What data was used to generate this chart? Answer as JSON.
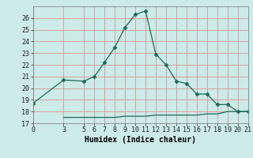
{
  "xlabel": "Humidex (Indice chaleur)",
  "bg_color": "#cceae7",
  "grid_color": "#d4a0a0",
  "line_color": "#1a6b5a",
  "line1_x": [
    0,
    3,
    5,
    6,
    7,
    8,
    9,
    10,
    11,
    12,
    13,
    14,
    15,
    16,
    17,
    18,
    19,
    20,
    21
  ],
  "line1_y": [
    18.7,
    20.7,
    20.6,
    21.0,
    22.2,
    23.5,
    25.2,
    26.3,
    26.6,
    22.9,
    22.0,
    20.6,
    20.4,
    19.5,
    19.5,
    18.6,
    18.6,
    18.0,
    18.0
  ],
  "line2_x": [
    3,
    5,
    6,
    7,
    8,
    9,
    10,
    11,
    12,
    13,
    14,
    15,
    16,
    17,
    18,
    19,
    20,
    21
  ],
  "line2_y": [
    17.5,
    17.5,
    17.5,
    17.5,
    17.5,
    17.6,
    17.6,
    17.6,
    17.7,
    17.7,
    17.7,
    17.7,
    17.7,
    17.8,
    17.8,
    18.0,
    18.0,
    18.0
  ],
  "ylim": [
    17,
    27
  ],
  "xlim": [
    0,
    21
  ],
  "yticks": [
    17,
    18,
    19,
    20,
    21,
    22,
    23,
    24,
    25,
    26
  ],
  "xticks": [
    0,
    3,
    5,
    6,
    7,
    8,
    9,
    10,
    11,
    12,
    13,
    14,
    15,
    16,
    17,
    18,
    19,
    20,
    21
  ],
  "tick_fontsize": 6,
  "xlabel_fontsize": 7
}
